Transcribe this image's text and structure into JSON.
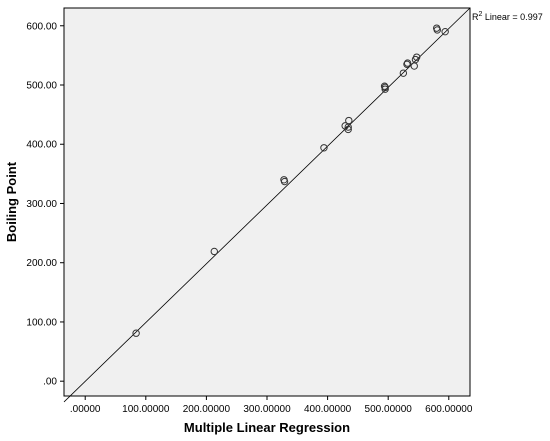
{
  "chart_data": {
    "type": "scatter",
    "xlabel": "Multiple Linear Regression",
    "ylabel": "Boiling Point",
    "xlim": [
      -35,
      635
    ],
    "ylim": [
      -25,
      630
    ],
    "x_ticks": [
      {
        "value": 0,
        "label": ".00000"
      },
      {
        "value": 100,
        "label": "100.00000"
      },
      {
        "value": 200,
        "label": "200.00000"
      },
      {
        "value": 300,
        "label": "300.00000"
      },
      {
        "value": 400,
        "label": "400.00000"
      },
      {
        "value": 500,
        "label": "500.00000"
      },
      {
        "value": 600,
        "label": "600.00000"
      }
    ],
    "y_ticks": [
      {
        "value": 0,
        "label": ".00"
      },
      {
        "value": 100,
        "label": "100.00"
      },
      {
        "value": 200,
        "label": "200.00"
      },
      {
        "value": 300,
        "label": "300.00"
      },
      {
        "value": 400,
        "label": "400.00"
      },
      {
        "value": 500,
        "label": "500.00"
      },
      {
        "value": 600,
        "label": "600.00"
      }
    ],
    "points": [
      {
        "x": 84,
        "y": 81
      },
      {
        "x": 213,
        "y": 219
      },
      {
        "x": 328,
        "y": 340
      },
      {
        "x": 329,
        "y": 337
      },
      {
        "x": 394,
        "y": 394
      },
      {
        "x": 429,
        "y": 431
      },
      {
        "x": 434,
        "y": 425
      },
      {
        "x": 435,
        "y": 440
      },
      {
        "x": 434,
        "y": 429
      },
      {
        "x": 494,
        "y": 498
      },
      {
        "x": 495,
        "y": 493
      },
      {
        "x": 495,
        "y": 496
      },
      {
        "x": 525,
        "y": 520
      },
      {
        "x": 531,
        "y": 535
      },
      {
        "x": 532,
        "y": 537
      },
      {
        "x": 543,
        "y": 532
      },
      {
        "x": 545,
        "y": 543
      },
      {
        "x": 547,
        "y": 547
      },
      {
        "x": 580,
        "y": 596
      },
      {
        "x": 581,
        "y": 593
      },
      {
        "x": 594,
        "y": 590
      }
    ],
    "fit_line": {
      "x": [
        -35,
        635
      ],
      "y": [
        -35,
        635
      ]
    },
    "fit_label_prefix": "R",
    "fit_label_sup": "2",
    "fit_label_suffix": " Linear = 0.997",
    "grid": false,
    "colors": {
      "plot_background": "#f0f0f0",
      "marker": "#333333",
      "line": "#000000"
    }
  }
}
